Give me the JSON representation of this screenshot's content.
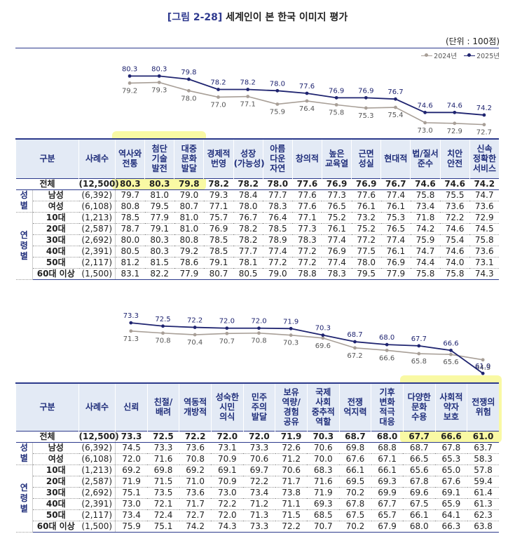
{
  "title_num": "[그림 2-28]",
  "title_text": "세계인이 본 한국 이미지 평가",
  "unit": "(단위 : 100점)",
  "legend": {
    "y2024": "2024년",
    "y2025": "2025년"
  },
  "colors": {
    "y2024": "#a89f97",
    "y2025": "#1f2470",
    "highlight": "#f4f45a",
    "header_bg": "#e3eaf5",
    "rule": "#2c3a8c"
  },
  "row_labels": {
    "header_group": "구분",
    "header_count": "사례수",
    "total": "전체",
    "gender_group": "성\n별",
    "male": "남성",
    "female": "여성",
    "age_group": "연\n령\n별",
    "a10": "10대",
    "a20": "20대",
    "a30": "30대",
    "a40": "40대",
    "a50": "50대",
    "a60": "60대 이상"
  },
  "counts": [
    "(12,500)",
    "(6,392)",
    "(6,108)",
    "(1,213)",
    "(2,587)",
    "(2,692)",
    "(2,391)",
    "(2,117)",
    "(1,500)"
  ],
  "chart_data": [
    {
      "type": "line",
      "title": "세계인이 본 한국 이미지 평가 (1)",
      "categories": [
        "역사와\n전통",
        "첨단\n기술\n발전",
        "대중\n문화\n발달",
        "경제적\n번영",
        "성장\n(가능성)",
        "아름\n다운\n자연",
        "창의적",
        "높은\n교육열",
        "근면\n성실",
        "현대적",
        "법/질서\n준수",
        "치안\n안전",
        "신속\n정확한\n서비스"
      ],
      "series": [
        {
          "name": "2024년",
          "values": [
            79.2,
            79.3,
            78.0,
            77.0,
            77.1,
            75.9,
            76.4,
            75.8,
            75.3,
            75.4,
            73.0,
            72.9,
            72.7
          ]
        },
        {
          "name": "2025년",
          "values": [
            80.3,
            80.3,
            79.8,
            78.2,
            78.2,
            78.0,
            77.6,
            76.9,
            76.9,
            76.7,
            74.6,
            74.6,
            74.2
          ]
        }
      ],
      "highlighted": [
        0,
        1,
        2
      ],
      "table": [
        [
          80.3,
          80.3,
          79.8,
          78.2,
          78.2,
          78.0,
          77.6,
          76.9,
          76.9,
          76.7,
          74.6,
          74.6,
          74.2
        ],
        [
          79.7,
          81.0,
          79.0,
          79.3,
          78.4,
          77.7,
          77.6,
          77.3,
          77.6,
          77.4,
          75.8,
          75.5,
          74.7
        ],
        [
          80.8,
          79.5,
          80.7,
          77.1,
          78.0,
          78.3,
          77.6,
          76.5,
          76.1,
          76.1,
          73.4,
          73.6,
          73.6
        ],
        [
          78.5,
          77.9,
          81.0,
          75.7,
          76.7,
          76.4,
          77.1,
          75.2,
          73.2,
          75.3,
          71.8,
          72.2,
          72.9
        ],
        [
          78.7,
          79.1,
          81.0,
          76.9,
          78.2,
          78.5,
          77.3,
          76.1,
          75.2,
          76.5,
          74.2,
          74.6,
          74.5
        ],
        [
          80.0,
          80.3,
          80.8,
          78.5,
          78.2,
          78.9,
          78.3,
          77.4,
          77.2,
          77.4,
          75.9,
          75.4,
          75.8
        ],
        [
          80.5,
          80.3,
          79.2,
          78.5,
          77.7,
          77.4,
          77.2,
          76.9,
          77.5,
          76.1,
          74.7,
          74.6,
          73.6
        ],
        [
          81.2,
          81.5,
          78.6,
          79.1,
          78.1,
          77.2,
          77.2,
          77.4,
          78.0,
          76.9,
          74.4,
          74.0,
          73.1
        ],
        [
          83.1,
          82.2,
          77.9,
          80.7,
          80.5,
          79.0,
          78.8,
          78.3,
          79.5,
          77.9,
          75.8,
          75.8,
          74.3
        ]
      ]
    },
    {
      "type": "line",
      "title": "세계인이 본 한국 이미지 평가 (2)",
      "categories": [
        "신뢰",
        "친절/\n배려",
        "역동적\n개방적",
        "성숙한\n시민\n의식",
        "민주\n주의\n발달",
        "보유\n역량/\n경험\n공유",
        "국제\n사회\n중추적\n역할",
        "전쟁\n억지력",
        "기후\n변화\n적극\n대응",
        "다양한\n문화\n수용",
        "사회적\n약자\n보호",
        "전쟁의\n위험"
      ],
      "series": [
        {
          "name": "2024년",
          "values": [
            71.3,
            70.8,
            70.4,
            70.7,
            70.8,
            70.3,
            69.6,
            67.2,
            66.6,
            65.8,
            65.6,
            64.3
          ]
        },
        {
          "name": "2025년",
          "values": [
            73.3,
            72.5,
            72.2,
            72.0,
            72.0,
            71.9,
            70.3,
            68.7,
            68.0,
            67.7,
            66.6,
            61.0
          ]
        }
      ],
      "highlighted": [
        9,
        10,
        11
      ],
      "table": [
        [
          73.3,
          72.5,
          72.2,
          72.0,
          72.0,
          71.9,
          70.3,
          68.7,
          68.0,
          67.7,
          66.6,
          61.0
        ],
        [
          74.5,
          73.3,
          73.6,
          73.1,
          73.3,
          72.6,
          70.6,
          69.8,
          68.8,
          68.7,
          67.8,
          63.7
        ],
        [
          72.0,
          71.6,
          70.8,
          70.9,
          70.6,
          71.2,
          70.0,
          67.6,
          67.1,
          66.5,
          65.3,
          58.3
        ],
        [
          69.2,
          69.8,
          69.2,
          69.1,
          69.7,
          70.6,
          68.3,
          66.1,
          66.1,
          65.6,
          65.0,
          57.8
        ],
        [
          71.9,
          71.5,
          71.0,
          70.9,
          72.2,
          71.7,
          71.6,
          69.5,
          69.3,
          67.8,
          67.6,
          59.4
        ],
        [
          75.1,
          73.5,
          73.6,
          73.0,
          73.4,
          73.8,
          71.9,
          70.2,
          69.9,
          69.6,
          69.1,
          61.4
        ],
        [
          73.0,
          72.1,
          71.7,
          72.2,
          71.2,
          71.1,
          69.3,
          67.8,
          67.7,
          67.5,
          65.9,
          61.3
        ],
        [
          73.4,
          72.4,
          72.7,
          72.0,
          71.3,
          71.5,
          68.5,
          67.5,
          65.7,
          66.1,
          64.1,
          62.3
        ],
        [
          75.9,
          75.1,
          74.2,
          74.3,
          73.3,
          72.2,
          70.7,
          70.2,
          67.9,
          68.0,
          66.3,
          63.8
        ]
      ]
    }
  ]
}
